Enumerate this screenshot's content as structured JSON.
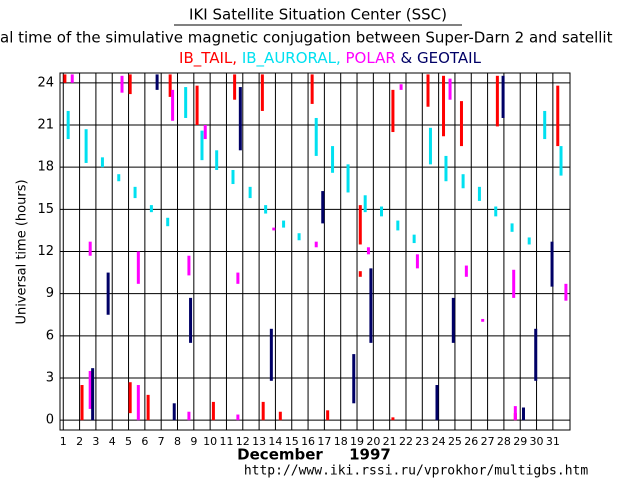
{
  "chart_data": {
    "type": "range",
    "title": "IKI Satellite Situation Center (SSC)",
    "subtitle": "al time of the simulative magnetic conjugation between Super-Darn 2 and satellit",
    "y_label": "Universal time (hours)",
    "x_label": "December",
    "x_label_year": "1997",
    "footer": "http://www.iki.rssi.ru/vprokhor/multigbs.htm",
    "xlim": [
      0.8,
      32.05
    ],
    "xticks": [
      1,
      2,
      3,
      4,
      5,
      6,
      7,
      8,
      9,
      10,
      11,
      12,
      13,
      14,
      15,
      16,
      17,
      18,
      19,
      20,
      21,
      22,
      23,
      24,
      25,
      26,
      27,
      28,
      29,
      30,
      31
    ],
    "ylim": [
      -0.7,
      24.7
    ],
    "yticks": [
      0,
      3,
      6,
      9,
      12,
      15,
      18,
      21,
      24
    ],
    "grid": true,
    "series": [
      {
        "name": "IB_TAIL,",
        "color": "#ff0000",
        "segments": [
          {
            "x": 1.1,
            "start": 24.0,
            "end": 24.6
          },
          {
            "x": 2.15,
            "start": 0,
            "end": 2.5
          },
          {
            "x": 5.1,
            "start": 0.5,
            "end": 2.7
          },
          {
            "x": 5.1,
            "start": 23.2,
            "end": 24.6
          },
          {
            "x": 6.2,
            "start": 0,
            "end": 1.8
          },
          {
            "x": 7.55,
            "start": 23,
            "end": 24.6
          },
          {
            "x": 9.2,
            "start": 21,
            "end": 23.8
          },
          {
            "x": 10.2,
            "start": 0,
            "end": 1.3
          },
          {
            "x": 11.5,
            "start": 22.8,
            "end": 24.6
          },
          {
            "x": 13.2,
            "start": 22,
            "end": 24.6
          },
          {
            "x": 13.25,
            "start": 0,
            "end": 1.3
          },
          {
            "x": 14.3,
            "start": 0,
            "end": 0.6
          },
          {
            "x": 16.25,
            "start": 22.5,
            "end": 24.6
          },
          {
            "x": 17.2,
            "start": 0,
            "end": 0.7
          },
          {
            "x": 19.2,
            "start": 12.5,
            "end": 15.3
          },
          {
            "x": 19.2,
            "start": 10.2,
            "end": 10.6
          },
          {
            "x": 21.2,
            "start": 20.5,
            "end": 23.5
          },
          {
            "x": 21.2,
            "start": 0,
            "end": 0.2
          },
          {
            "x": 23.35,
            "start": 22.3,
            "end": 24.6
          },
          {
            "x": 24.3,
            "start": 20.2,
            "end": 24.5
          },
          {
            "x": 25.4,
            "start": 19.5,
            "end": 22.7
          },
          {
            "x": 27.6,
            "start": 20.9,
            "end": 24.5
          },
          {
            "x": 28.7,
            "start": 0,
            "end": 0.5
          },
          {
            "x": 31.3,
            "start": 19.5,
            "end": 23.8
          }
        ]
      },
      {
        "name": "IB_AURORAL,",
        "color": "#00e0f0",
        "segments": [
          {
            "x": 1.3,
            "start": 20,
            "end": 22
          },
          {
            "x": 2.4,
            "start": 18.3,
            "end": 20.7
          },
          {
            "x": 3.4,
            "start": 18,
            "end": 18.7
          },
          {
            "x": 4.4,
            "start": 17,
            "end": 17.5
          },
          {
            "x": 5.4,
            "start": 15.8,
            "end": 16.6
          },
          {
            "x": 6.4,
            "start": 14.8,
            "end": 15.3
          },
          {
            "x": 7.4,
            "start": 13.8,
            "end": 14.4
          },
          {
            "x": 8.5,
            "start": 21.5,
            "end": 23.7
          },
          {
            "x": 9.5,
            "start": 18.5,
            "end": 20.6
          },
          {
            "x": 10.4,
            "start": 17.8,
            "end": 19.2
          },
          {
            "x": 11.4,
            "start": 16.8,
            "end": 17.8
          },
          {
            "x": 12.45,
            "start": 15.8,
            "end": 16.6
          },
          {
            "x": 13.4,
            "start": 14.7,
            "end": 15.3
          },
          {
            "x": 14.5,
            "start": 13.7,
            "end": 14.2
          },
          {
            "x": 15.45,
            "start": 12.8,
            "end": 13.3
          },
          {
            "x": 16.5,
            "start": 18.8,
            "end": 21.5
          },
          {
            "x": 17.5,
            "start": 17.6,
            "end": 19.5
          },
          {
            "x": 18.45,
            "start": 16.2,
            "end": 18.2
          },
          {
            "x": 19.5,
            "start": 14.8,
            "end": 16
          },
          {
            "x": 20.5,
            "start": 14.5,
            "end": 15.2
          },
          {
            "x": 21.5,
            "start": 13.5,
            "end": 14.2
          },
          {
            "x": 22.5,
            "start": 12.6,
            "end": 13.2
          },
          {
            "x": 23.5,
            "start": 18.2,
            "end": 20.8
          },
          {
            "x": 24.45,
            "start": 17,
            "end": 18.8
          },
          {
            "x": 25.5,
            "start": 16.5,
            "end": 17.5
          },
          {
            "x": 26.5,
            "start": 15.6,
            "end": 16.6
          },
          {
            "x": 27.5,
            "start": 14.5,
            "end": 15.2
          },
          {
            "x": 28.5,
            "start": 13.4,
            "end": 14
          },
          {
            "x": 29.55,
            "start": 12.5,
            "end": 13
          },
          {
            "x": 30.5,
            "start": 20,
            "end": 22
          },
          {
            "x": 31.5,
            "start": 17.4,
            "end": 19.5
          }
        ]
      },
      {
        "name": "POLAR",
        "color": "#ff00ff",
        "segments": [
          {
            "x": 1.55,
            "start": 24,
            "end": 24.6
          },
          {
            "x": 2.65,
            "start": 0.8,
            "end": 3.5
          },
          {
            "x": 2.65,
            "start": 11.7,
            "end": 12.7
          },
          {
            "x": 4.6,
            "start": 23.3,
            "end": 24.5
          },
          {
            "x": 5.6,
            "start": 0,
            "end": 2.5
          },
          {
            "x": 5.6,
            "start": 9.7,
            "end": 12
          },
          {
            "x": 7.7,
            "start": 21.3,
            "end": 23.5
          },
          {
            "x": 8.7,
            "start": 10.3,
            "end": 11.7
          },
          {
            "x": 8.7,
            "start": 0,
            "end": 0.6
          },
          {
            "x": 9.7,
            "start": 20,
            "end": 21
          },
          {
            "x": 11.7,
            "start": 9.7,
            "end": 10.5
          },
          {
            "x": 11.7,
            "start": 0,
            "end": 0.4
          },
          {
            "x": 13.9,
            "start": 13.5,
            "end": 13.7
          },
          {
            "x": 16.5,
            "start": 12.3,
            "end": 12.7
          },
          {
            "x": 19.7,
            "start": 11.8,
            "end": 12.3
          },
          {
            "x": 21.7,
            "start": 23.5,
            "end": 23.9
          },
          {
            "x": 22.7,
            "start": 10.8,
            "end": 11.8
          },
          {
            "x": 24.7,
            "start": 22.8,
            "end": 24.3
          },
          {
            "x": 25.7,
            "start": 10.2,
            "end": 11
          },
          {
            "x": 26.7,
            "start": 7,
            "end": 7.2
          },
          {
            "x": 28.6,
            "start": 8.7,
            "end": 10.7
          },
          {
            "x": 28.7,
            "start": 0,
            "end": 1
          },
          {
            "x": 31.8,
            "start": 8.5,
            "end": 9.7
          }
        ]
      },
      {
        "name": "& GEOTAIL",
        "color": "#000066",
        "segments": [
          {
            "x": 2.8,
            "start": 0,
            "end": 3.7
          },
          {
            "x": 3.75,
            "start": 7.5,
            "end": 10.5
          },
          {
            "x": 6.75,
            "start": 23.5,
            "end": 24.6
          },
          {
            "x": 7.8,
            "start": 0,
            "end": 1.2
          },
          {
            "x": 8.8,
            "start": 5.5,
            "end": 8.7
          },
          {
            "x": 11.85,
            "start": 19.2,
            "end": 23.7
          },
          {
            "x": 13.75,
            "start": 2.8,
            "end": 6.5
          },
          {
            "x": 16.9,
            "start": 14,
            "end": 16.3
          },
          {
            "x": 18.8,
            "start": 1.2,
            "end": 4.7
          },
          {
            "x": 19.85,
            "start": 5.5,
            "end": 10.8
          },
          {
            "x": 23.9,
            "start": 0,
            "end": 2.5
          },
          {
            "x": 24.9,
            "start": 5.5,
            "end": 8.7
          },
          {
            "x": 27.95,
            "start": 21.5,
            "end": 24.5
          },
          {
            "x": 29.2,
            "start": 0,
            "end": 0.9
          },
          {
            "x": 29.95,
            "start": 2.8,
            "end": 6.5
          },
          {
            "x": 30.95,
            "start": 9.5,
            "end": 12.7
          }
        ]
      }
    ]
  }
}
